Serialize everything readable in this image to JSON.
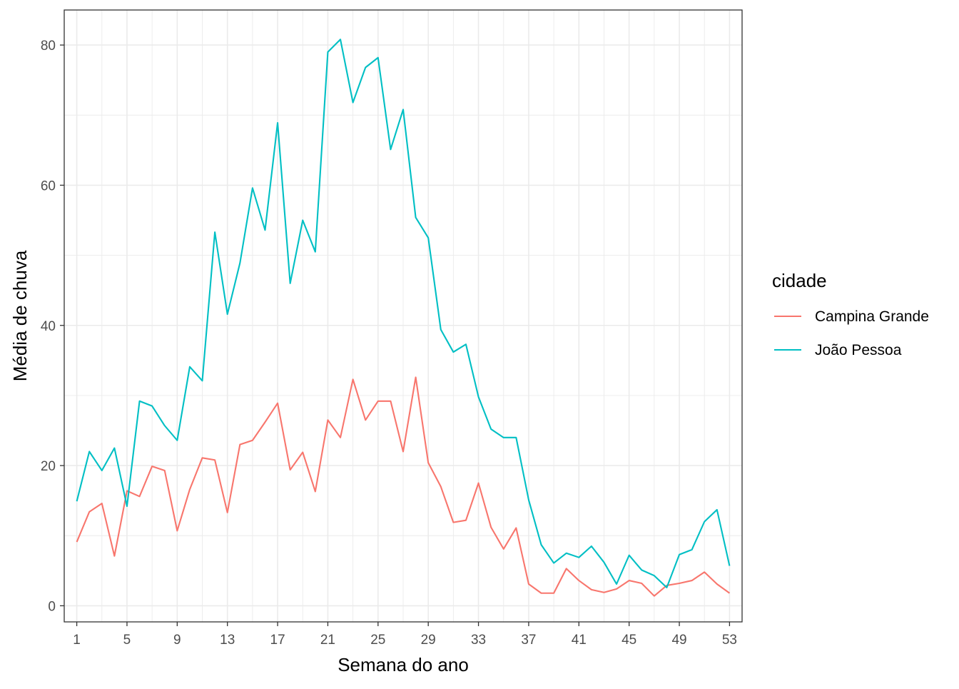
{
  "chart_data": {
    "type": "line",
    "xlabel": "Semana do ano",
    "ylabel": "Média de chuva",
    "xlim": [
      0,
      54
    ],
    "ylim": [
      -2.3,
      85
    ],
    "x_ticks": [
      1,
      5,
      9,
      13,
      17,
      21,
      25,
      29,
      33,
      37,
      41,
      45,
      49,
      53
    ],
    "y_ticks": [
      0,
      20,
      40,
      60,
      80
    ],
    "grid": true,
    "legend": {
      "title": "cidade",
      "position": "right"
    },
    "colors": {
      "Campina Grande": "#F8766D",
      "João Pessoa": "#00BFC4"
    },
    "x": [
      1,
      2,
      3,
      4,
      5,
      6,
      7,
      8,
      9,
      10,
      11,
      12,
      13,
      14,
      15,
      16,
      17,
      18,
      19,
      20,
      21,
      22,
      23,
      24,
      25,
      26,
      27,
      28,
      29,
      30,
      31,
      32,
      33,
      34,
      35,
      36,
      37,
      38,
      39,
      40,
      41,
      42,
      43,
      44,
      45,
      46,
      47,
      48,
      49,
      50,
      51,
      52,
      53
    ],
    "series": [
      {
        "name": "Campina Grande",
        "values": [
          9.1,
          13.4,
          14.6,
          7.1,
          16.4,
          15.6,
          19.9,
          19.3,
          10.7,
          16.6,
          21.1,
          20.8,
          13.3,
          23.0,
          23.6,
          26.2,
          28.9,
          19.4,
          21.9,
          16.3,
          26.5,
          24.0,
          32.3,
          26.5,
          29.2,
          29.2,
          22.0,
          32.6,
          20.4,
          17.0,
          11.9,
          12.2,
          17.5,
          11.2,
          8.1,
          11.1,
          3.1,
          1.8,
          1.8,
          5.3,
          3.6,
          2.3,
          1.9,
          2.4,
          3.6,
          3.2,
          1.4,
          2.9,
          3.2,
          3.6,
          4.8,
          3.1,
          1.8
        ]
      },
      {
        "name": "João Pessoa",
        "values": [
          14.9,
          22.0,
          19.3,
          22.5,
          14.2,
          29.2,
          28.5,
          25.7,
          23.6,
          34.1,
          32.1,
          53.3,
          41.6,
          48.9,
          59.6,
          53.6,
          68.9,
          46.0,
          55.0,
          50.5,
          79.0,
          80.8,
          71.8,
          76.8,
          78.2,
          65.1,
          70.8,
          55.4,
          52.5,
          39.4,
          36.2,
          37.3,
          29.8,
          25.2,
          24.0,
          24.0,
          15.1,
          8.7,
          6.1,
          7.5,
          6.9,
          8.5,
          6.2,
          3.1,
          7.2,
          5.1,
          4.3,
          2.6,
          7.3,
          8.0,
          12.0,
          13.7,
          5.7
        ]
      }
    ]
  }
}
